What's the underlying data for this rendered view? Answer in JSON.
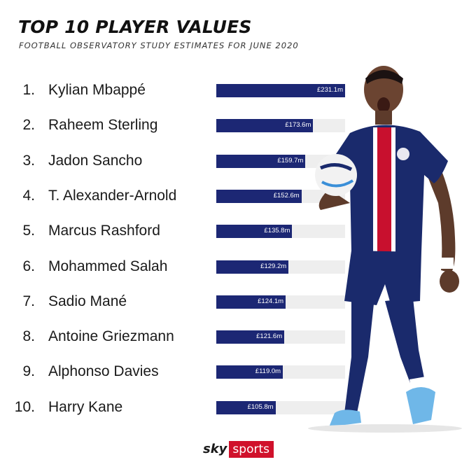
{
  "title": "TOP 10 PLAYER VALUES",
  "subtitle": "FOOTBALL OBSERVATORY STUDY ESTIMATES FOR JUNE 2020",
  "chart_data": {
    "type": "bar",
    "title": "TOP 10 PLAYER VALUES",
    "subtitle": "FOOTBALL OBSERVATORY STUDY ESTIMATES FOR JUNE 2020",
    "orientation": "horizontal",
    "ranks": [
      "1.",
      "2.",
      "3.",
      "4.",
      "5.",
      "6.",
      "7.",
      "8.",
      "9.",
      "10."
    ],
    "categories": [
      "Kylian Mbappé",
      "Raheem Sterling",
      "Jadon Sancho",
      "T. Alexander-Arnold",
      "Marcus Rashford",
      "Mohammed Salah",
      "Sadio Mané",
      "Antoine Griezmann",
      "Alphonso Davies",
      "Harry Kane"
    ],
    "values": [
      231.1,
      173.6,
      159.7,
      152.6,
      135.8,
      129.2,
      124.1,
      121.6,
      119.0,
      105.8
    ],
    "value_labels": [
      "£231.1m",
      "£173.6m",
      "£159.7m",
      "£152.6m",
      "£135.8m",
      "£129.2m",
      "£124.1m",
      "£121.6m",
      "£119.0m",
      "£105.8m"
    ],
    "xlim": [
      0,
      231.1
    ],
    "bar_color": "#1c2774",
    "track_color": "#eeeeee",
    "grid": false
  },
  "logo": {
    "sky": "sky",
    "sports": "sports"
  }
}
